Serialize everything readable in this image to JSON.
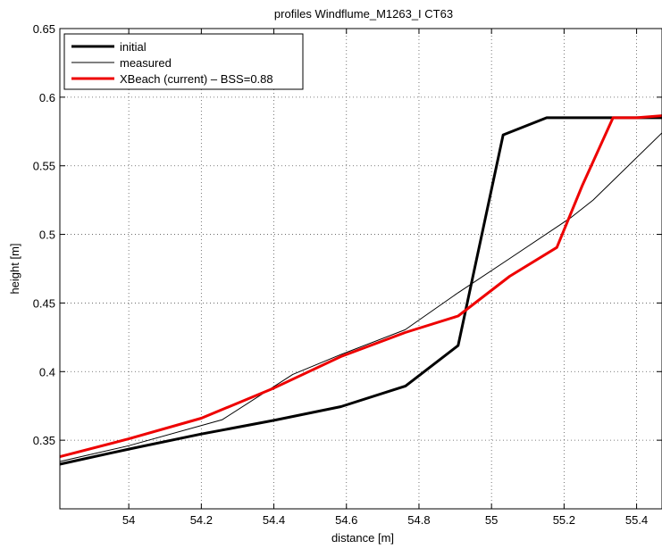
{
  "chart_data": {
    "type": "line",
    "title": "profiles Windflume_M1263_I CT63",
    "xlabel": "distance [m]",
    "ylabel": "height [m]",
    "xlim": [
      53.81,
      55.47
    ],
    "ylim": [
      0.3,
      0.65
    ],
    "xticks": [
      54,
      54.2,
      54.4,
      54.6,
      54.8,
      55,
      55.2,
      55.4
    ],
    "xtick_labels": [
      "54",
      "54.2",
      "54.4",
      "54.6",
      "54.8",
      "55",
      "55.2",
      "55.4"
    ],
    "yticks": [
      0.35,
      0.4,
      0.45,
      0.5,
      0.55,
      0.6,
      0.65
    ],
    "ytick_labels": [
      "0.35",
      "0.4",
      "0.45",
      "0.5",
      "0.55",
      "0.6",
      "0.65"
    ],
    "grid": true,
    "legend_position": "top-left",
    "series": [
      {
        "name": "initial",
        "color": "#000000",
        "style": "thick",
        "x": [
          53.81,
          54.0,
          54.2,
          54.4,
          54.585,
          54.763,
          54.908,
          55.032,
          55.152,
          55.33,
          55.47
        ],
        "y": [
          0.3325,
          0.3435,
          0.3545,
          0.3645,
          0.3745,
          0.3895,
          0.419,
          0.5725,
          0.585,
          0.585,
          0.585
        ]
      },
      {
        "name": "measured",
        "color": "#000000",
        "style": "thin",
        "x": [
          53.81,
          54.0,
          54.258,
          54.452,
          54.585,
          54.762,
          54.908,
          55.045,
          55.22,
          55.28,
          55.47
        ],
        "y": [
          0.3345,
          0.346,
          0.365,
          0.398,
          0.4125,
          0.4305,
          0.4575,
          0.4815,
          0.5125,
          0.525,
          0.574
        ]
      },
      {
        "name": "XBeach (current) – BSS=0.88",
        "color": "#ee0000",
        "style": "thick",
        "x": [
          53.81,
          54.0,
          54.2,
          54.4,
          54.585,
          54.762,
          54.908,
          55.05,
          55.18,
          55.25,
          55.335,
          55.4,
          55.47
        ],
        "y": [
          0.338,
          0.351,
          0.366,
          0.388,
          0.411,
          0.4285,
          0.4405,
          0.4695,
          0.4905,
          0.5355,
          0.585,
          0.585,
          0.5865
        ]
      }
    ]
  }
}
